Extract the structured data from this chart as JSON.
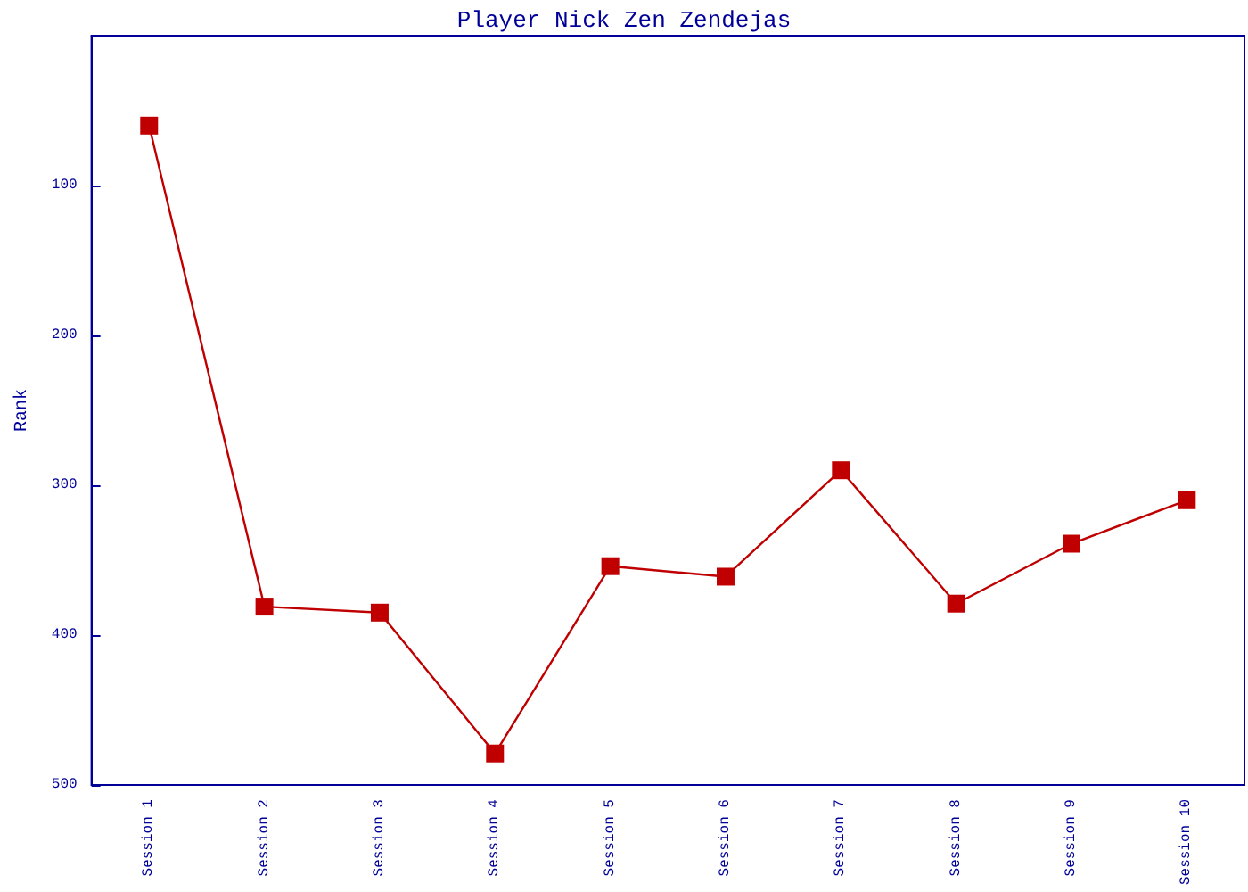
{
  "chart_data": {
    "type": "line",
    "title": "Player Nick Zen Zendejas",
    "ylabel": "Rank",
    "categories": [
      "Session 1",
      "Session 2",
      "Session 3",
      "Session 4",
      "Session 5",
      "Session 6",
      "Session 7",
      "Session 8",
      "Session 9",
      "Session 10"
    ],
    "series": [
      {
        "color": "#c00000",
        "values": [
          60,
          381,
          385,
          479,
          354,
          361,
          290,
          379,
          339,
          310
        ]
      }
    ],
    "ylim": [
      500,
      0
    ],
    "yticks": [
      100,
      200,
      300,
      400,
      500
    ],
    "marker": "square",
    "line_style": "solid"
  }
}
